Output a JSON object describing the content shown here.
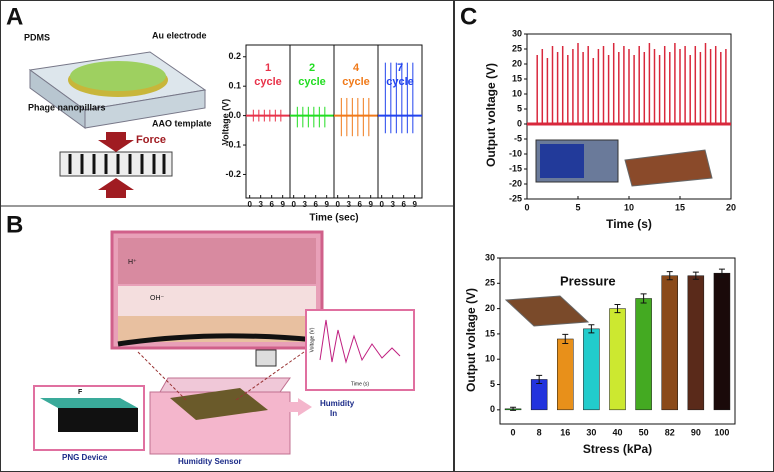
{
  "panels": {
    "a": "A",
    "b": "B",
    "c": "C"
  },
  "panel_a": {
    "pdms": "PDMS",
    "au": "Au electrode",
    "phage": "Phage nanopillars",
    "aao": "AAO template",
    "force": "Force"
  },
  "panel_b": {
    "h": "H⁺",
    "oh": "OH⁻",
    "png": "PNG Device",
    "sensor": "Humidity Sensor",
    "humidity": "Humidity",
    "in": "In",
    "f": "F",
    "inset_y": "Voltage (V)",
    "inset_x": "Time (s)"
  },
  "chart_data": [
    {
      "type": "spikes",
      "x_label": "Time (sec)",
      "y_label": "Voltage (V)",
      "ylim": [
        -0.28,
        0.24
      ],
      "yticks": [
        0.2,
        0.1,
        {
          "value": 0,
          "label": "0.0"
        },
        -0.1,
        -0.2
      ],
      "xlim": [
        -1,
        11
      ],
      "xticks": [
        0,
        3,
        6,
        9
      ],
      "subplots": [
        {
          "label": "1",
          "unit": "cycle",
          "color": "#e8334a",
          "x": [
            1,
            2.5,
            4,
            5.5,
            7,
            8.5
          ],
          "peaks": [
            0.02,
            0.02,
            0.02,
            0.02,
            0.02,
            0.02
          ],
          "troughs": [
            -0.02,
            -0.02,
            -0.02,
            -0.02,
            -0.02,
            -0.02
          ]
        },
        {
          "label": "2",
          "unit": "cycle",
          "color": "#22dd22",
          "x": [
            1,
            2.5,
            4,
            5.5,
            7,
            8.5
          ],
          "peaks": [
            0.03,
            0.03,
            0.03,
            0.03,
            0.03,
            0.03
          ],
          "troughs": [
            -0.04,
            -0.04,
            -0.04,
            -0.04,
            -0.04,
            -0.04
          ]
        },
        {
          "label": "4",
          "unit": "cycle",
          "color": "#f07a1a",
          "x": [
            1,
            2.5,
            4,
            5.5,
            7,
            8.5
          ],
          "peaks": [
            0.06,
            0.06,
            0.06,
            0.06,
            0.06,
            0.06
          ],
          "troughs": [
            -0.07,
            -0.07,
            -0.07,
            -0.07,
            -0.07,
            -0.07
          ]
        },
        {
          "label": "7",
          "unit": "cycle",
          "color": "#2244ee",
          "x": [
            1,
            2.5,
            4,
            5.5,
            7,
            8.5
          ],
          "peaks": [
            0.18,
            0.18,
            0.18,
            0.18,
            0.18,
            0.18
          ],
          "troughs": [
            -0.06,
            -0.06,
            -0.06,
            -0.06,
            -0.06,
            -0.06
          ]
        }
      ]
    },
    {
      "type": "spikes",
      "x_label": "Time (s)",
      "y_label": "Output voltage (V)",
      "color": "#d8283c",
      "xlim": [
        0,
        20
      ],
      "xticks": [
        0,
        5,
        10,
        15,
        20
      ],
      "ylim": [
        -25,
        30
      ],
      "yticks": [
        -25,
        -20,
        -15,
        -10,
        -5,
        0,
        5,
        10,
        15,
        20,
        25,
        30
      ],
      "x": [
        1.0,
        1.5,
        2.0,
        2.5,
        3.0,
        3.5,
        4.0,
        4.5,
        5.0,
        5.5,
        6.0,
        6.5,
        7.0,
        7.5,
        8.0,
        8.5,
        9.0,
        9.5,
        10.0,
        10.5,
        11.0,
        11.5,
        12.0,
        12.5,
        13.0,
        13.5,
        14.0,
        14.5,
        15.0,
        15.5,
        16.0,
        16.5,
        17.0,
        17.5,
        18.0,
        18.5,
        19.0,
        19.5
      ],
      "values": [
        23,
        25,
        22,
        26,
        24,
        26,
        23,
        25,
        27,
        24,
        26,
        22,
        25,
        26,
        23,
        27,
        24,
        26,
        25,
        23,
        26,
        24,
        27,
        25,
        23,
        26,
        24,
        27,
        25,
        26,
        23,
        26,
        24,
        27,
        25,
        26,
        24,
        25
      ]
    },
    {
      "type": "bar",
      "x_label": "Stress (kPa)",
      "y_label": "Output voltage (V)",
      "annotation": "Pressure",
      "categories": [
        "0",
        "8",
        "16",
        "30",
        "40",
        "50",
        "82",
        "90",
        "100"
      ],
      "values": [
        0.2,
        6,
        14,
        16,
        20,
        22,
        26.5,
        26.5,
        27
      ],
      "errors": [
        0.3,
        0.8,
        0.9,
        0.8,
        0.8,
        0.9,
        0.8,
        0.7,
        0.8
      ],
      "colors": [
        "#22cc22",
        "#2233dd",
        "#e8901a",
        "#22cccc",
        "#cce830",
        "#44aa22",
        "#8a4a1a",
        "#5a2a1a",
        "#1a0a0a"
      ],
      "ylim": [
        -2.8,
        30
      ],
      "yticks": [
        0,
        5,
        10,
        15,
        20,
        25,
        30
      ]
    }
  ]
}
